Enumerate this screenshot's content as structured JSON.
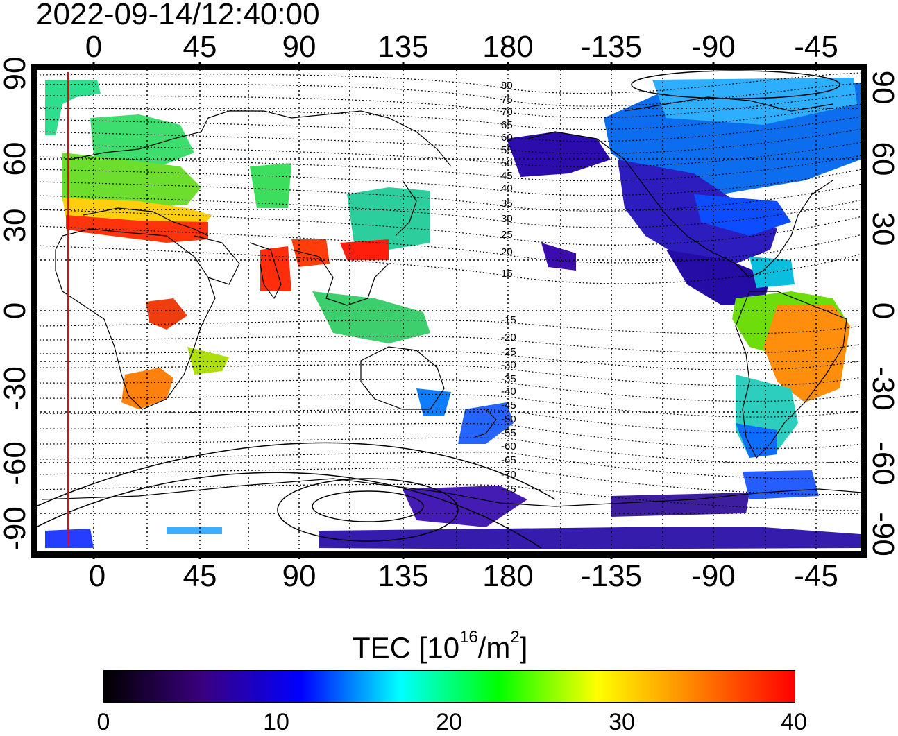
{
  "title": "2022-09-14/12:40:00",
  "map": {
    "top_lon_ticks": [
      "0",
      "45",
      "90",
      "135",
      "180",
      "-135",
      "-90",
      "-45"
    ],
    "bottom_lon_ticks": [
      "0",
      "45",
      "90",
      "135",
      "180",
      "-135",
      "-90",
      "-45"
    ],
    "left_lat_ticks": [
      "90",
      "60",
      "30",
      "0",
      "-30",
      "-60",
      "-90"
    ],
    "right_lat_ticks": [
      "90",
      "60",
      "30",
      "0",
      "-30",
      "-60",
      "-90"
    ],
    "maglat_labels": [
      "80",
      "75",
      "70",
      "65",
      "60",
      "55",
      "50",
      "45",
      "40",
      "35",
      "30",
      "25",
      "20",
      "15",
      "-15",
      "-20",
      "-25",
      "-30",
      "-35",
      "-40",
      "-45",
      "-50",
      "-55",
      "-60",
      "-65",
      "-70",
      "-75"
    ],
    "terminator_color": "#ff0000"
  },
  "colorbar": {
    "label_main": "TEC  [10",
    "label_exp1": "16",
    "label_mid": "/m",
    "label_exp2": "2",
    "label_end": "]",
    "ticks": [
      "0",
      "10",
      "20",
      "30",
      "40"
    ],
    "min": 0,
    "max": 40,
    "colors": [
      "#000000",
      "#3a0080",
      "#0000ff",
      "#00ffff",
      "#00ff00",
      "#ffff00",
      "#ff8000",
      "#ff0000"
    ]
  }
}
